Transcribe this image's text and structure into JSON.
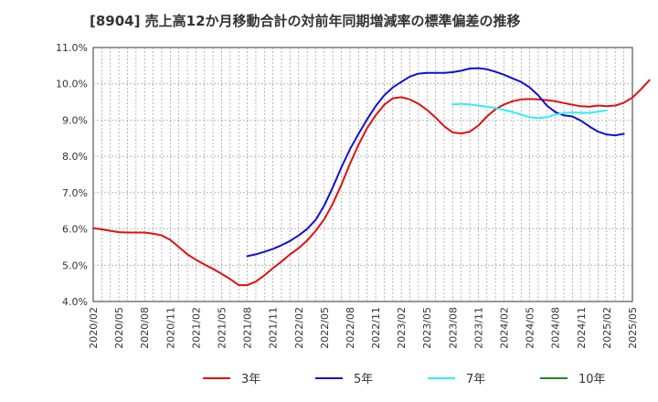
{
  "chart_data": {
    "type": "line",
    "title": "[8904]  売上高12か月移動合計の対前年同期増減率の標準偏差の推移",
    "xlabel": "",
    "ylabel": "",
    "ylim": [
      4.0,
      11.0
    ],
    "y_ticks": [
      "4.0%",
      "5.0%",
      "6.0%",
      "7.0%",
      "8.0%",
      "9.0%",
      "10.0%",
      "11.0%"
    ],
    "x_ticks": [
      "2020/02",
      "2020/05",
      "2020/08",
      "2020/11",
      "2021/02",
      "2021/05",
      "2021/08",
      "2021/11",
      "2022/02",
      "2022/05",
      "2022/08",
      "2022/11",
      "2023/02",
      "2023/05",
      "2023/08",
      "2023/11",
      "2024/02",
      "2024/05",
      "2024/08",
      "2024/11",
      "2025/02",
      "2025/05"
    ],
    "x_range": [
      "2020/02",
      "2025/05"
    ],
    "grid": true,
    "legend_position": "bottom",
    "series": [
      {
        "name": "3年",
        "color": "#dd1111",
        "start": "2020/02",
        "values": [
          6.02,
          5.99,
          5.95,
          5.91,
          5.9,
          5.9,
          5.9,
          5.87,
          5.82,
          5.7,
          5.5,
          5.3,
          5.15,
          5.02,
          4.9,
          4.76,
          4.62,
          4.45,
          4.45,
          4.55,
          4.72,
          4.92,
          5.1,
          5.3,
          5.47,
          5.68,
          5.95,
          6.27,
          6.7,
          7.22,
          7.8,
          8.32,
          8.78,
          9.13,
          9.42,
          9.6,
          9.63,
          9.57,
          9.45,
          9.28,
          9.07,
          8.83,
          8.66,
          8.63,
          8.68,
          8.85,
          9.1,
          9.3,
          9.43,
          9.52,
          9.57,
          9.58,
          9.57,
          9.55,
          9.52,
          9.47,
          9.42,
          9.38,
          9.37,
          9.4,
          9.38,
          9.4,
          9.48,
          9.62,
          9.85,
          10.1
        ]
      },
      {
        "name": "5年",
        "color": "#1111cc",
        "start": "2021/08",
        "values": [
          5.25,
          5.3,
          5.37,
          5.45,
          5.55,
          5.67,
          5.82,
          6.0,
          6.25,
          6.65,
          7.15,
          7.7,
          8.2,
          8.62,
          9.02,
          9.38,
          9.68,
          9.9,
          10.05,
          10.2,
          10.28,
          10.3,
          10.3,
          10.3,
          10.32,
          10.36,
          10.42,
          10.43,
          10.4,
          10.33,
          10.25,
          10.15,
          10.05,
          9.9,
          9.68,
          9.4,
          9.22,
          9.13,
          9.1,
          8.98,
          8.82,
          8.68,
          8.6,
          8.58,
          8.62
        ]
      },
      {
        "name": "7年",
        "color": "#33eeee",
        "start": "2023/08",
        "values": [
          9.43,
          9.45,
          9.43,
          9.4,
          9.37,
          9.33,
          9.28,
          9.22,
          9.15,
          9.08,
          9.05,
          9.08,
          9.15,
          9.2,
          9.21,
          9.2,
          9.2,
          9.23,
          9.27
        ]
      },
      {
        "name": "10年",
        "color": "#228822",
        "start": "2025/02",
        "values": []
      }
    ]
  }
}
